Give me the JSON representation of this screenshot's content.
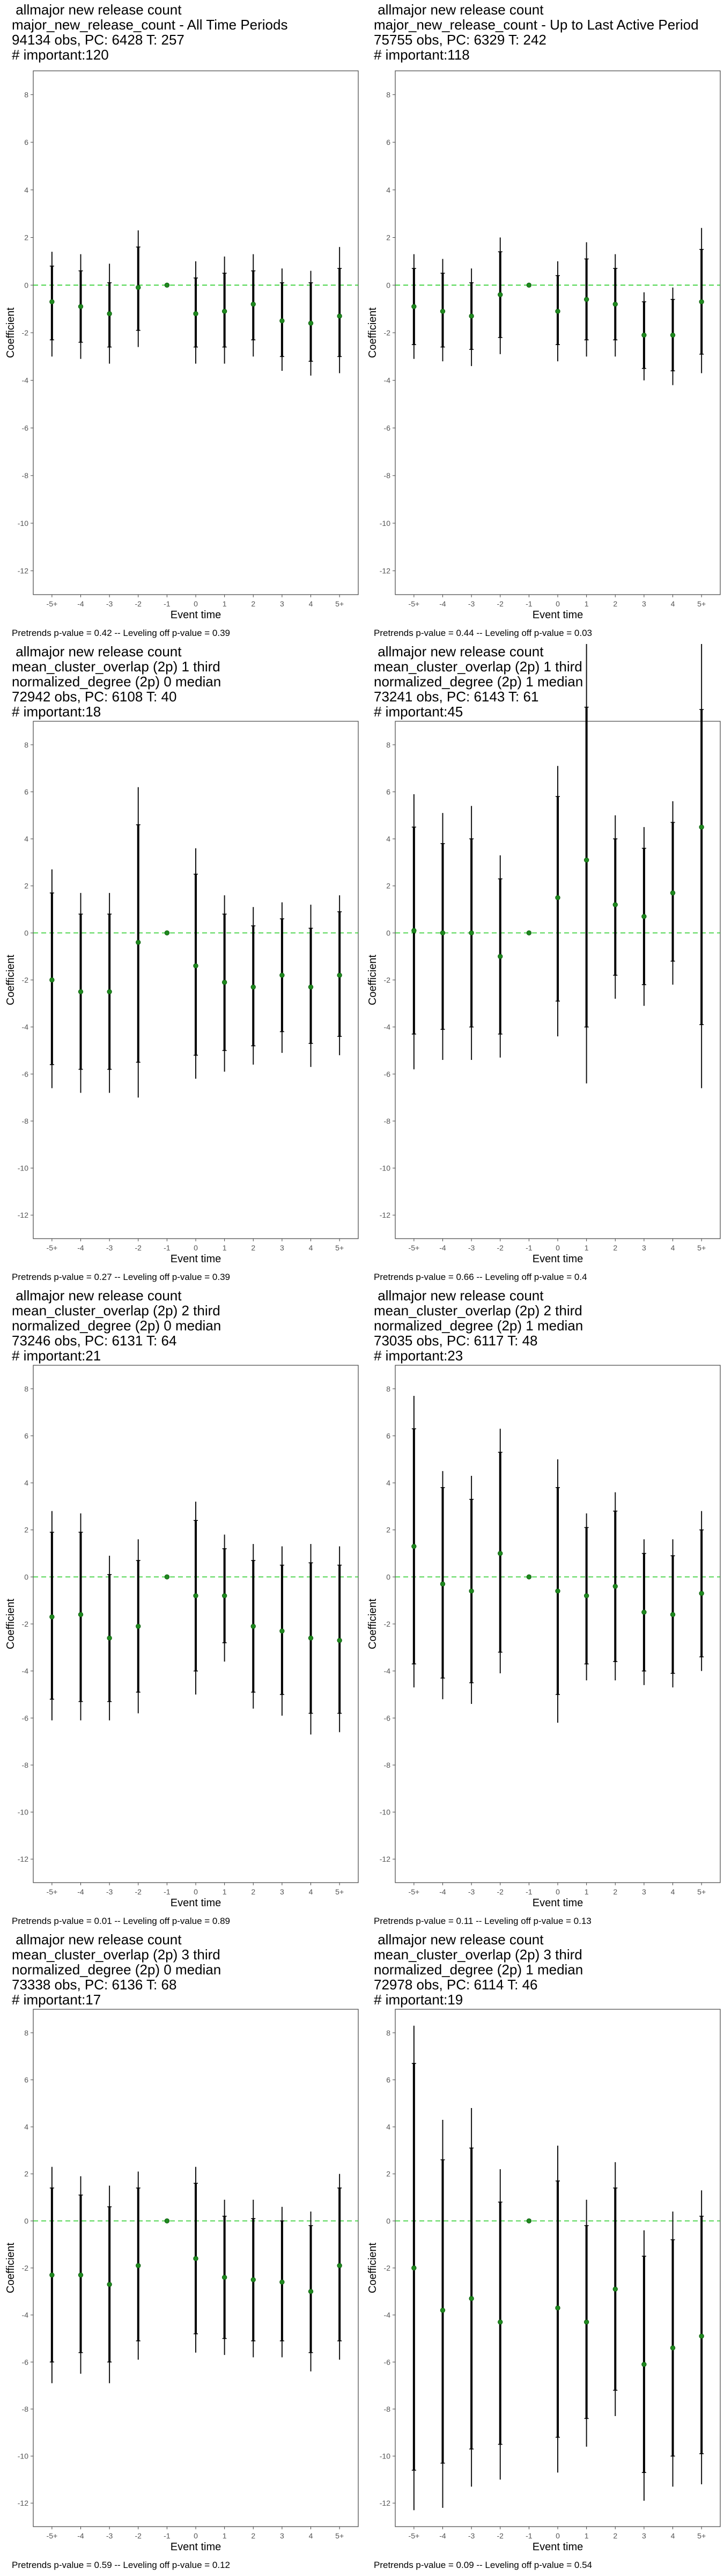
{
  "layout_note": "",
  "chart_data": [
    {
      "type": "scatter",
      "title_lines": [
        " allmajor new release count",
        "major_new_release_count - All Time Periods",
        "94134 obs, PC: 6428 T: 257",
        "# important:120"
      ],
      "xlabel": "Event time",
      "ylabel": "Coefficient",
      "categories": [
        "-5+",
        "-4",
        "-3",
        "-2",
        "-1",
        "0",
        "1",
        "2",
        "3",
        "4",
        "5+"
      ],
      "ylim": [
        -13,
        9
      ],
      "yticks": [
        -12,
        -10,
        -8,
        -6,
        -4,
        -2,
        0,
        2,
        4,
        6,
        8
      ],
      "estimates": [
        -0.7,
        -0.9,
        -1.2,
        -0.1,
        0,
        -1.2,
        -1.1,
        -0.8,
        -1.5,
        -1.6,
        -1.3
      ],
      "ci95_low": [
        -2.3,
        -2.4,
        -2.6,
        -1.9,
        null,
        -2.6,
        -2.6,
        -2.3,
        -3.0,
        -3.2,
        -3.0
      ],
      "ci95_high": [
        0.8,
        0.6,
        0.1,
        1.6,
        null,
        0.3,
        0.5,
        0.6,
        0.1,
        0.1,
        0.7
      ],
      "ci_outer_low": [
        -3.0,
        -3.1,
        -3.3,
        -2.6,
        null,
        -3.3,
        -3.3,
        -3.0,
        -3.6,
        -3.8,
        -3.7
      ],
      "ci_outer_high": [
        1.4,
        1.3,
        0.9,
        2.3,
        null,
        1.0,
        1.2,
        1.3,
        0.7,
        0.6,
        1.6
      ],
      "reference_line": 0,
      "footnote": "Pretrends p-value = 0.42 -- Leveling off p-value = 0.39"
    },
    {
      "type": "scatter",
      "title_lines": [
        " allmajor new release count",
        "major_new_release_count - Up to Last Active Period",
        "75755 obs, PC: 6329 T: 242",
        "# important:118"
      ],
      "xlabel": "Event time",
      "ylabel": "Coefficient",
      "categories": [
        "-5+",
        "-4",
        "-3",
        "-2",
        "-1",
        "0",
        "1",
        "2",
        "3",
        "4",
        "5+"
      ],
      "ylim": [
        -13,
        9
      ],
      "yticks": [
        -12,
        -10,
        -8,
        -6,
        -4,
        -2,
        0,
        2,
        4,
        6,
        8
      ],
      "estimates": [
        -0.9,
        -1.1,
        -1.3,
        -0.4,
        0,
        -1.1,
        -0.6,
        -0.8,
        -2.1,
        -2.1,
        -0.7
      ],
      "ci95_low": [
        -2.5,
        -2.6,
        -2.7,
        -2.2,
        null,
        -2.5,
        -2.3,
        -2.3,
        -3.5,
        -3.6,
        -2.9
      ],
      "ci95_high": [
        0.7,
        0.5,
        0.1,
        1.4,
        null,
        0.4,
        1.1,
        0.7,
        -0.7,
        -0.6,
        1.5
      ],
      "ci_outer_low": [
        -3.1,
        -3.2,
        -3.4,
        -2.9,
        null,
        -3.2,
        -3.0,
        -3.0,
        -4.0,
        -4.2,
        -3.7
      ],
      "ci_outer_high": [
        1.3,
        1.1,
        0.7,
        2.0,
        null,
        1.0,
        1.8,
        1.3,
        -0.3,
        -0.1,
        2.4
      ],
      "reference_line": 0,
      "footnote": "Pretrends p-value = 0.44 -- Leveling off p-value = 0.03"
    },
    {
      "type": "scatter",
      "title_lines": [
        " allmajor new release count",
        "mean_cluster_overlap (2p) 1 third",
        "normalized_degree (2p) 0 median",
        "72942 obs, PC: 6108 T: 40",
        "# important:18"
      ],
      "xlabel": "Event time",
      "ylabel": "Coefficient",
      "categories": [
        "-5+",
        "-4",
        "-3",
        "-2",
        "-1",
        "0",
        "1",
        "2",
        "3",
        "4",
        "5+"
      ],
      "ylim": [
        -13,
        9
      ],
      "yticks": [
        -12,
        -10,
        -8,
        -6,
        -4,
        -2,
        0,
        2,
        4,
        6,
        8
      ],
      "estimates": [
        -2.0,
        -2.5,
        -2.5,
        -0.4,
        0,
        -1.4,
        -2.1,
        -2.3,
        -1.8,
        -2.3,
        -1.8
      ],
      "ci95_low": [
        -5.6,
        -5.8,
        -5.8,
        -5.5,
        null,
        -5.2,
        -5.0,
        -4.8,
        -4.2,
        -4.7,
        -4.4
      ],
      "ci95_high": [
        1.7,
        0.8,
        0.8,
        4.6,
        null,
        2.5,
        0.8,
        0.3,
        0.6,
        0.2,
        0.9
      ],
      "ci_outer_low": [
        -6.6,
        -6.8,
        -6.8,
        -7.0,
        null,
        -6.2,
        -5.9,
        -5.6,
        -5.1,
        -5.7,
        -5.2
      ],
      "ci_outer_high": [
        2.7,
        1.7,
        1.7,
        6.2,
        null,
        3.6,
        1.6,
        1.1,
        1.3,
        1.2,
        1.6
      ],
      "reference_line": 0,
      "footnote": "Pretrends p-value = 0.27 -- Leveling off p-value = 0.39"
    },
    {
      "type": "scatter",
      "title_lines": [
        " allmajor new release count",
        "mean_cluster_overlap (2p) 1 third",
        "normalized_degree (2p) 1 median",
        "73241 obs, PC: 6143 T: 61",
        "# important:45"
      ],
      "xlabel": "Event time",
      "ylabel": "Coefficient",
      "categories": [
        "-5+",
        "-4",
        "-3",
        "-2",
        "-1",
        "0",
        "1",
        "2",
        "3",
        "4",
        "5+"
      ],
      "ylim": [
        -13,
        9
      ],
      "yticks": [
        -12,
        -10,
        -8,
        -6,
        -4,
        -2,
        0,
        2,
        4,
        6,
        8
      ],
      "estimates": [
        0.1,
        -0.0,
        0.0,
        -1.0,
        0,
        1.5,
        3.1,
        1.2,
        0.7,
        1.7,
        4.5
      ],
      "ci95_low": [
        -4.3,
        -4.1,
        -4.0,
        -4.3,
        null,
        -2.9,
        -4.0,
        -1.8,
        -2.2,
        -1.2,
        -3.9
      ],
      "ci95_high": [
        4.5,
        3.8,
        4.0,
        2.3,
        null,
        5.8,
        9.6,
        4.0,
        3.6,
        4.7,
        9.5
      ],
      "ci_outer_low": [
        -5.8,
        -5.4,
        -5.4,
        -5.3,
        null,
        -4.4,
        -6.4,
        -2.8,
        -3.1,
        -2.2,
        -6.6
      ],
      "ci_outer_high": [
        5.9,
        5.1,
        5.4,
        3.3,
        null,
        7.1,
        12.5,
        5.0,
        4.5,
        5.6,
        12.5
      ],
      "reference_line": 0,
      "footnote": "Pretrends p-value = 0.66 -- Leveling off p-value = 0.4"
    },
    {
      "type": "scatter",
      "title_lines": [
        " allmajor new release count",
        "mean_cluster_overlap (2p) 2 third",
        "normalized_degree (2p) 0 median",
        "73246 obs, PC: 6131 T: 64",
        "# important:21"
      ],
      "xlabel": "Event time",
      "ylabel": "Coefficient",
      "categories": [
        "-5+",
        "-4",
        "-3",
        "-2",
        "-1",
        "0",
        "1",
        "2",
        "3",
        "4",
        "5+"
      ],
      "ylim": [
        -13,
        9
      ],
      "yticks": [
        -12,
        -10,
        -8,
        -6,
        -4,
        -2,
        0,
        2,
        4,
        6,
        8
      ],
      "estimates": [
        -1.7,
        -1.6,
        -2.6,
        -2.1,
        0,
        -0.8,
        -0.8,
        -2.1,
        -2.3,
        -2.6,
        -2.7
      ],
      "ci95_low": [
        -5.2,
        -5.3,
        -5.3,
        -4.9,
        null,
        -4.0,
        -2.8,
        -4.9,
        -5.0,
        -5.8,
        -5.8
      ],
      "ci95_high": [
        1.9,
        1.9,
        0.1,
        0.7,
        null,
        2.4,
        1.2,
        0.7,
        0.5,
        0.6,
        0.5
      ],
      "ci_outer_low": [
        -6.1,
        -6.1,
        -6.1,
        -5.8,
        null,
        -5.0,
        -3.6,
        -5.6,
        -5.9,
        -6.7,
        -6.6
      ],
      "ci_outer_high": [
        2.8,
        2.7,
        0.9,
        1.6,
        null,
        3.2,
        1.8,
        1.4,
        1.3,
        1.4,
        1.3
      ],
      "reference_line": 0,
      "footnote": "Pretrends p-value = 0.01 -- Leveling off p-value = 0.89"
    },
    {
      "type": "scatter",
      "title_lines": [
        " allmajor new release count",
        "mean_cluster_overlap (2p) 2 third",
        "normalized_degree (2p) 1 median",
        "73035 obs, PC: 6117 T: 48",
        "# important:23"
      ],
      "xlabel": "Event time",
      "ylabel": "Coefficient",
      "categories": [
        "-5+",
        "-4",
        "-3",
        "-2",
        "-1",
        "0",
        "1",
        "2",
        "3",
        "4",
        "5+"
      ],
      "ylim": [
        -13,
        9
      ],
      "yticks": [
        -12,
        -10,
        -8,
        -6,
        -4,
        -2,
        0,
        2,
        4,
        6,
        8
      ],
      "estimates": [
        1.3,
        -0.3,
        -0.6,
        1.0,
        0,
        -0.6,
        -0.8,
        -0.4,
        -1.5,
        -1.6,
        -0.7
      ],
      "ci95_low": [
        -3.7,
        -4.3,
        -4.5,
        -3.2,
        null,
        -5.0,
        -3.7,
        -3.6,
        -4.0,
        -4.1,
        -3.4
      ],
      "ci95_high": [
        6.3,
        3.8,
        3.3,
        5.3,
        null,
        3.8,
        2.1,
        2.8,
        1.0,
        0.9,
        2.0
      ],
      "ci_outer_low": [
        -4.7,
        -5.2,
        -5.4,
        -4.1,
        null,
        -6.2,
        -4.4,
        -4.4,
        -4.6,
        -4.7,
        -4.0
      ],
      "ci_outer_high": [
        7.7,
        4.5,
        4.3,
        6.3,
        null,
        5.0,
        2.7,
        3.6,
        1.6,
        1.6,
        2.8
      ],
      "reference_line": 0,
      "footnote": "Pretrends p-value = 0.11 -- Leveling off p-value = 0.13"
    },
    {
      "type": "scatter",
      "title_lines": [
        " allmajor new release count",
        "mean_cluster_overlap (2p) 3 third",
        "normalized_degree (2p) 0 median",
        "73338 obs, PC: 6136 T: 68",
        "# important:17"
      ],
      "xlabel": "Event time",
      "ylabel": "Coefficient",
      "categories": [
        "-5+",
        "-4",
        "-3",
        "-2",
        "-1",
        "0",
        "1",
        "2",
        "3",
        "4",
        "5+"
      ],
      "ylim": [
        -13,
        9
      ],
      "yticks": [
        -12,
        -10,
        -8,
        -6,
        -4,
        -2,
        0,
        2,
        4,
        6,
        8
      ],
      "estimates": [
        -2.3,
        -2.3,
        -2.7,
        -1.9,
        0,
        -1.6,
        -2.4,
        -2.5,
        -2.6,
        -3.0,
        -1.9
      ],
      "ci95_low": [
        -6.0,
        -5.6,
        -6.0,
        -5.1,
        null,
        -4.8,
        -5.0,
        -5.1,
        -5.1,
        -5.6,
        -5.1
      ],
      "ci95_high": [
        1.4,
        1.1,
        0.6,
        1.4,
        null,
        1.6,
        0.2,
        0.1,
        0.0,
        -0.2,
        1.4
      ],
      "ci_outer_low": [
        -6.9,
        -6.5,
        -6.9,
        -5.9,
        null,
        -5.6,
        -5.7,
        -5.8,
        -5.8,
        -6.4,
        -5.9
      ],
      "ci_outer_high": [
        2.3,
        1.9,
        1.5,
        2.1,
        null,
        2.3,
        0.9,
        0.9,
        0.6,
        0.4,
        2.0
      ],
      "reference_line": 0,
      "footnote": "Pretrends p-value = 0.59 -- Leveling off p-value = 0.12"
    },
    {
      "type": "scatter",
      "title_lines": [
        " allmajor new release count",
        "mean_cluster_overlap (2p) 3 third",
        "normalized_degree (2p) 1 median",
        "72978 obs, PC: 6114 T: 46",
        "# important:19"
      ],
      "xlabel": "Event time",
      "ylabel": "Coefficient",
      "categories": [
        "-5+",
        "-4",
        "-3",
        "-2",
        "-1",
        "0",
        "1",
        "2",
        "3",
        "4",
        "5+"
      ],
      "ylim": [
        -13,
        9
      ],
      "yticks": [
        -12,
        -10,
        -8,
        -6,
        -4,
        -2,
        0,
        2,
        4,
        6,
        8
      ],
      "estimates": [
        -2.0,
        -3.8,
        -3.3,
        -4.3,
        0,
        -3.7,
        -4.3,
        -2.9,
        -6.1,
        -5.4,
        -4.9
      ],
      "ci95_low": [
        -10.6,
        -10.3,
        -9.7,
        -9.5,
        null,
        -9.2,
        -8.4,
        -7.2,
        -10.7,
        -10.0,
        -9.9
      ],
      "ci95_high": [
        6.7,
        2.6,
        3.1,
        0.8,
        null,
        1.7,
        -0.2,
        1.4,
        -1.5,
        -0.8,
        0.2
      ],
      "ci_outer_low": [
        -12.3,
        -12.2,
        -11.3,
        -11.0,
        null,
        -10.7,
        -9.6,
        -8.3,
        -11.9,
        -11.3,
        -11.2
      ],
      "ci_outer_high": [
        8.3,
        4.3,
        4.8,
        2.2,
        null,
        3.2,
        0.9,
        2.5,
        -0.4,
        0.4,
        1.3
      ],
      "reference_line": 0,
      "footnote": "Pretrends p-value = 0.09 -- Leveling off p-value = 0.54"
    }
  ]
}
